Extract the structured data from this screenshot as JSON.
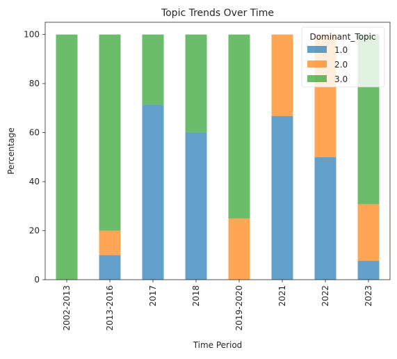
{
  "chart_data": {
    "type": "bar",
    "stacked": true,
    "title": "Topic Trends Over Time",
    "xlabel": "Time Period",
    "ylabel": "Percentage",
    "ylim": [
      0,
      105
    ],
    "yticks": [
      "0",
      "20",
      "40",
      "60",
      "80",
      "100"
    ],
    "categories": [
      "2002-2013",
      "2013-2016",
      "2017",
      "2018",
      "2019-2020",
      "2021",
      "2022",
      "2023"
    ],
    "legend": {
      "title": "Dominant_Topic",
      "position": "top-right"
    },
    "grid": false,
    "series": [
      {
        "name": "1.0",
        "color": "#1f77b4",
        "values": [
          0,
          10,
          71.4,
          60,
          0,
          66.7,
          50,
          7.7
        ]
      },
      {
        "name": "2.0",
        "color": "#ff7f0e",
        "values": [
          0,
          10,
          0,
          0,
          25,
          33.3,
          50,
          23.1
        ]
      },
      {
        "name": "3.0",
        "color": "#2ca02c",
        "values": [
          100,
          80,
          28.6,
          40,
          75,
          0,
          0,
          69.2
        ]
      }
    ]
  }
}
